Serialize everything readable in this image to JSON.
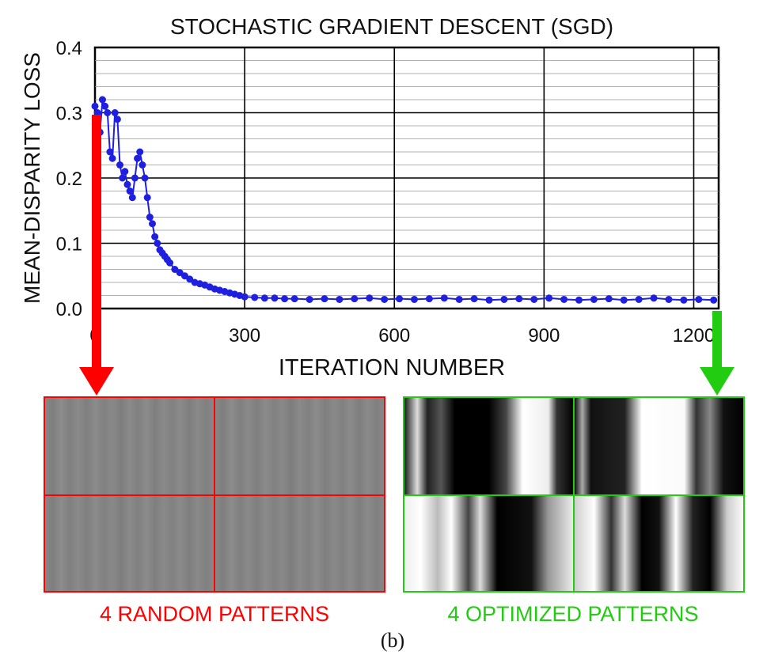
{
  "chart_data": {
    "type": "scatter",
    "title": "STOCHASTIC GRADIENT DESCENT (SGD)",
    "xlabel": "ITERATION NUMBER",
    "ylabel": "MEAN-DISPARITY LOSS",
    "xlim": [
      0,
      1250
    ],
    "ylim": [
      0,
      0.4
    ],
    "x_ticks": [
      0,
      300,
      600,
      900,
      1200
    ],
    "x_tick_labels": [
      "0",
      "300",
      "600",
      "900",
      "1200"
    ],
    "y_ticks": [
      0,
      0.1,
      0.2,
      0.3,
      0.4
    ],
    "y_tick_labels": [
      "0.0",
      "0.1",
      "0.2",
      "0.3",
      "0.4"
    ],
    "grid": "on",
    "series": [
      {
        "color": "#1f1fe0",
        "x": [
          0,
          5,
          10,
          15,
          20,
          25,
          30,
          35,
          40,
          45,
          50,
          55,
          60,
          65,
          70,
          75,
          80,
          85,
          90,
          95,
          100,
          105,
          110,
          115,
          120,
          125,
          130,
          135,
          140,
          145,
          150,
          160,
          170,
          180,
          190,
          200,
          210,
          220,
          230,
          240,
          250,
          260,
          270,
          280,
          290,
          300,
          320,
          340,
          360,
          380,
          400,
          430,
          460,
          490,
          520,
          550,
          580,
          610,
          640,
          670,
          700,
          730,
          760,
          790,
          820,
          850,
          880,
          910,
          940,
          970,
          1000,
          1030,
          1060,
          1090,
          1120,
          1150,
          1180,
          1210,
          1240
        ],
        "y": [
          0.31,
          0.3,
          0.27,
          0.32,
          0.31,
          0.3,
          0.24,
          0.23,
          0.3,
          0.29,
          0.22,
          0.2,
          0.21,
          0.19,
          0.18,
          0.17,
          0.2,
          0.23,
          0.24,
          0.22,
          0.2,
          0.17,
          0.14,
          0.13,
          0.11,
          0.1,
          0.09,
          0.085,
          0.08,
          0.075,
          0.07,
          0.06,
          0.055,
          0.05,
          0.045,
          0.04,
          0.038,
          0.036,
          0.033,
          0.03,
          0.028,
          0.026,
          0.024,
          0.022,
          0.02,
          0.018,
          0.017,
          0.016,
          0.016,
          0.015,
          0.015,
          0.014,
          0.015,
          0.014,
          0.015,
          0.016,
          0.014,
          0.015,
          0.014,
          0.015,
          0.016,
          0.014,
          0.015,
          0.013,
          0.014,
          0.015,
          0.014,
          0.016,
          0.014,
          0.013,
          0.014,
          0.015,
          0.013,
          0.014,
          0.016,
          0.014,
          0.013,
          0.014,
          0.013
        ]
      }
    ]
  },
  "annotations": {
    "random_label": "4 RANDOM PATTERNS",
    "optimized_label": "4 OPTIMIZED PATTERNS",
    "caption": "(b)",
    "arrow_colors": {
      "random": "#ff0000",
      "optimized": "#22cc11"
    },
    "random_marker_iteration": 0,
    "optimized_marker_iteration": 1250
  }
}
